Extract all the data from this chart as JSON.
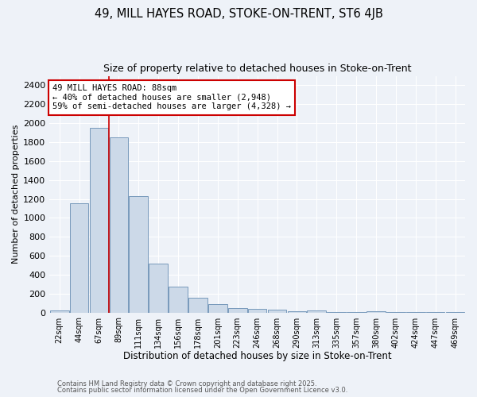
{
  "title1": "49, MILL HAYES ROAD, STOKE-ON-TRENT, ST6 4JB",
  "title2": "Size of property relative to detached houses in Stoke-on-Trent",
  "xlabel": "Distribution of detached houses by size in Stoke-on-Trent",
  "ylabel": "Number of detached properties",
  "categories": [
    "22sqm",
    "44sqm",
    "67sqm",
    "89sqm",
    "111sqm",
    "134sqm",
    "156sqm",
    "178sqm",
    "201sqm",
    "223sqm",
    "246sqm",
    "268sqm",
    "290sqm",
    "313sqm",
    "335sqm",
    "357sqm",
    "380sqm",
    "402sqm",
    "424sqm",
    "447sqm",
    "469sqm"
  ],
  "values": [
    20,
    1150,
    1950,
    1850,
    1230,
    520,
    270,
    155,
    90,
    45,
    35,
    30,
    15,
    20,
    5,
    2,
    15,
    2,
    2,
    2,
    1
  ],
  "bar_color": "#ccd9e8",
  "bar_edge_color": "#7799bb",
  "red_line_index": 3,
  "annotation_text": "49 MILL HAYES ROAD: 88sqm\n← 40% of detached houses are smaller (2,948)\n59% of semi-detached houses are larger (4,328) →",
  "annotation_box_color": "#ffffff",
  "annotation_box_edge": "#cc0000",
  "footnote1": "Contains HM Land Registry data © Crown copyright and database right 2025.",
  "footnote2": "Contains public sector information licensed under the Open Government Licence v3.0.",
  "bg_color": "#eef2f8",
  "grid_color": "#ffffff",
  "ylim": [
    0,
    2500
  ],
  "yticks": [
    0,
    200,
    400,
    600,
    800,
    1000,
    1200,
    1400,
    1600,
    1800,
    2000,
    2200,
    2400
  ]
}
